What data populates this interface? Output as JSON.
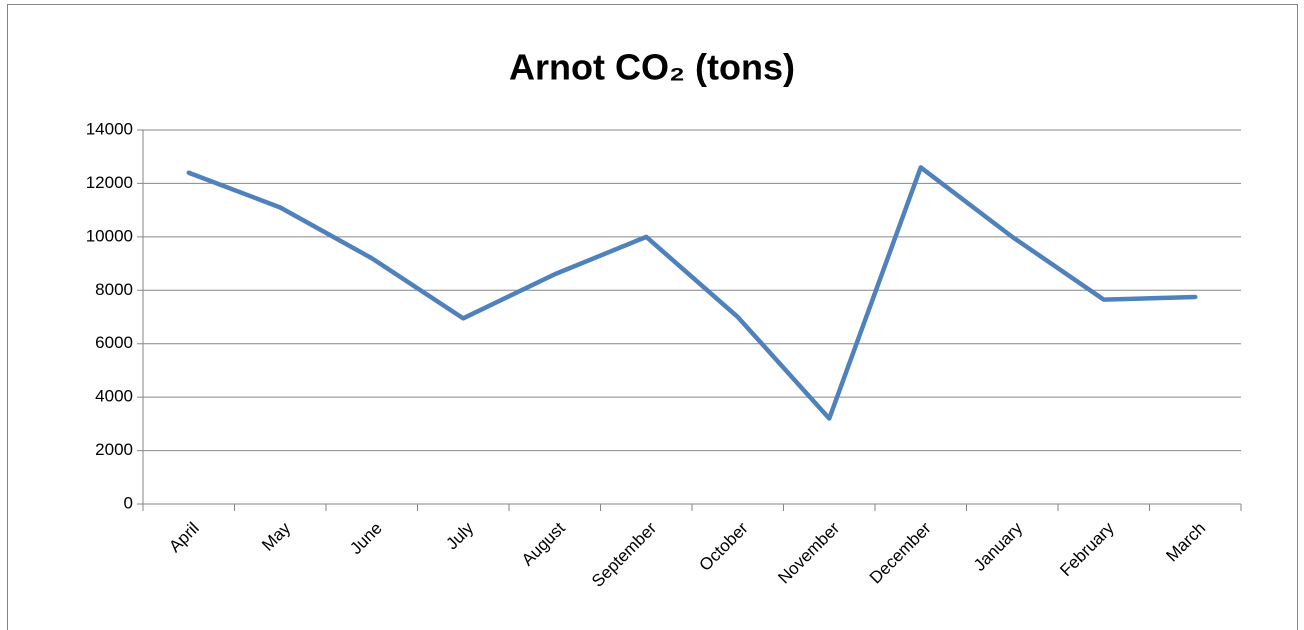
{
  "chart_data": {
    "type": "line",
    "title": "Arnot CO₂ (tons)",
    "categories": [
      "April",
      "May",
      "June",
      "July",
      "August",
      "September",
      "October",
      "November",
      "December",
      "January",
      "February",
      "March"
    ],
    "series": [
      {
        "color": "#4f81bd",
        "values": [
          12400,
          11100,
          9200,
          6950,
          8600,
          10000,
          7000,
          3200,
          12600,
          10000,
          7650,
          7750
        ]
      }
    ],
    "ylim": [
      0,
      14000
    ],
    "yticks": [
      0,
      2000,
      4000,
      6000,
      8000,
      10000,
      12000,
      14000
    ],
    "grid": true
  }
}
